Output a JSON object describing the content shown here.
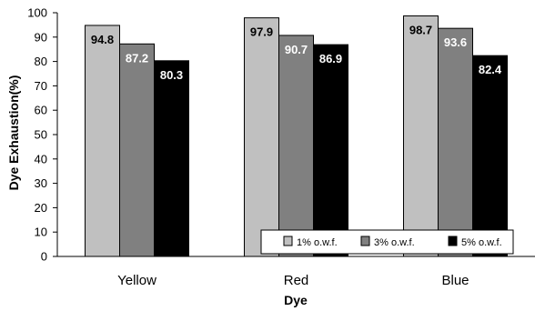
{
  "chart_data": {
    "type": "bar",
    "title": "",
    "xlabel": "Dye",
    "ylabel": "Dye Exhaustion(%)",
    "ylim": [
      0,
      100
    ],
    "yticks": [
      0,
      10,
      20,
      30,
      40,
      50,
      60,
      70,
      80,
      90,
      100
    ],
    "categories": [
      "Yellow",
      "Red",
      "Blue"
    ],
    "series": [
      {
        "name": "1% o.w.f.",
        "values": [
          94.8,
          97.9,
          98.7
        ],
        "color": "#c0c0c0",
        "label_color": "#000000"
      },
      {
        "name": "3% o.w.f.",
        "values": [
          87.2,
          90.7,
          93.6
        ],
        "color": "#808080",
        "label_color": "#ffffff"
      },
      {
        "name": "5% o.w.f.",
        "values": [
          80.3,
          86.9,
          82.4
        ],
        "color": "#000000",
        "label_color": "#ffffff"
      }
    ],
    "data_labels": [
      [
        "94.8",
        "97.9",
        "98.7"
      ],
      [
        "87.2",
        "90.7",
        "93.6"
      ],
      [
        "80.3",
        "86.9",
        "82.4"
      ]
    ],
    "grid": false,
    "legend_position": "bottom-right inside"
  }
}
